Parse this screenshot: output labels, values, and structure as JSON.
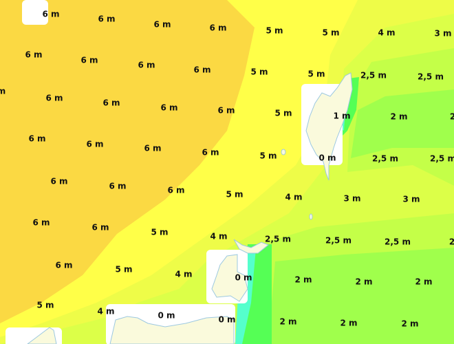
{
  "map": {
    "unit": "m",
    "legend_colors": {
      "6 m": "#fbd943",
      "5 m": "#ffff48",
      "4 m": "#eefc48",
      "3 m": "#dcff48",
      "2,5 m": "#c4ff48",
      "2 m": "#a0ff4c",
      "1 m": "#55ff55",
      "0 m": "#55ffcc",
      "land": "#fafadc",
      "coast": "#9cc8e0"
    },
    "labels": [
      "6 m",
      "6 m",
      "6 m",
      "6 m",
      "5 m",
      "5 m",
      "4 m",
      "3 m",
      "6 m",
      "6 m",
      "6 m",
      "6 m",
      "5 m",
      "5 m",
      "2,5 m",
      "2,5 m",
      "m",
      "6 m",
      "6 m",
      "6 m",
      "6 m",
      "5 m",
      "1 m",
      "2 m",
      "2",
      "6 m",
      "6 m",
      "6 m",
      "6 m",
      "5 m",
      "0 m",
      "2,5 m",
      "2,5 m",
      "6 m",
      "6 m",
      "6 m",
      "5 m",
      "4 m",
      "3 m",
      "3 m",
      "6 m",
      "6 m",
      "5 m",
      "4 m",
      "2,5 m",
      "2,5 m",
      "2,5 m",
      "2",
      "6 m",
      "5 m",
      "4 m",
      "0 m",
      "2 m",
      "2 m",
      "2 m",
      "5 m",
      "4 m",
      "0 m",
      "0 m",
      "2 m",
      "2 m",
      "2 m"
    ]
  }
}
